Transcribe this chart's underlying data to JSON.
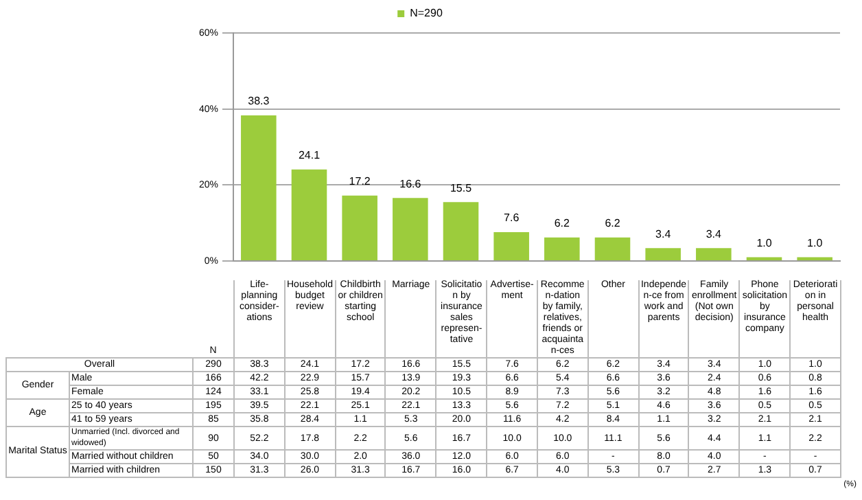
{
  "chart_data": {
    "type": "bar",
    "categories": [
      "Life-planning consider-ations",
      "Household budget review",
      "Childbirth or children starting school",
      "Marriage",
      "Solicitation by insurance sales represen-tative",
      "Advertise-ment",
      "Recommen-dation by family, relatives, friends or acquaintan-ces",
      "Other",
      "Independen-ce from work and parents",
      "Family enrollment (Not own decision)",
      "Phone solicitation by insurance company",
      "Deterioration in personal health"
    ],
    "series": [
      {
        "name": "N=290",
        "color": "#9ccc3c",
        "values": [
          38.3,
          24.1,
          17.2,
          16.6,
          15.5,
          7.6,
          6.2,
          6.2,
          3.4,
          3.4,
          1.0,
          1.0
        ],
        "value_labels": [
          "38.3",
          "24.1",
          "17.2",
          "16.6",
          "15.5",
          "7.6",
          "6.2",
          "6.2",
          "3.4",
          "3.4",
          "1.0",
          "1.0"
        ]
      }
    ],
    "ylim": [
      0,
      60
    ],
    "yticks": [
      {
        "value": 0,
        "label": "0%"
      },
      {
        "value": 20,
        "label": "20%"
      },
      {
        "value": 40,
        "label": "40%"
      },
      {
        "value": 60,
        "label": "60%"
      }
    ],
    "grid": "y",
    "legend": "top",
    "annotations": [
      "N",
      "Overall",
      "290",
      "Gender",
      "Male",
      "166",
      "42.2",
      "22.9",
      "15.7",
      "13.9",
      "19.3",
      "6.6",
      "5.4",
      "6.6",
      "3.6",
      "2.4",
      "0.6",
      "0.8",
      "Female",
      "124",
      "33.1",
      "25.8",
      "19.4",
      "20.2",
      "10.5",
      "8.9",
      "7.3",
      "5.6",
      "3.2",
      "4.8",
      "1.6",
      "1.6",
      "Age",
      "25 to 40 years",
      "195",
      "39.5",
      "22.1",
      "25.1",
      "22.1",
      "13.3",
      "5.6",
      "7.2",
      "5.1",
      "4.6",
      "3.6",
      "0.5",
      "0.5",
      "41 to 59 years",
      "85",
      "35.8",
      "28.4",
      "1.1",
      "5.3",
      "20.0",
      "11.6",
      "4.2",
      "8.4",
      "1.1",
      "3.2",
      "2.1",
      "2.1",
      "Marital Status",
      "Unmarried (Incl. divorced and widowed)",
      "90",
      "52.2",
      "17.8",
      "2.2",
      "5.6",
      "16.7",
      "10.0",
      "10.0",
      "11.1",
      "5.6",
      "4.4",
      "1.1",
      "2.2",
      "Married without children",
      "50",
      "34.0",
      "30.0",
      "2.0",
      "36.0",
      "12.0",
      "6.0",
      "6.0",
      "-",
      "8.0",
      "4.0",
      "-",
      "-",
      "Married with children",
      "150",
      "31.3",
      "26.0",
      "31.3",
      "16.7",
      "16.0",
      "6.7",
      "4.0",
      "5.3",
      "0.7",
      "2.7",
      "1.3",
      "0.7",
      "(%)"
    ]
  }
}
